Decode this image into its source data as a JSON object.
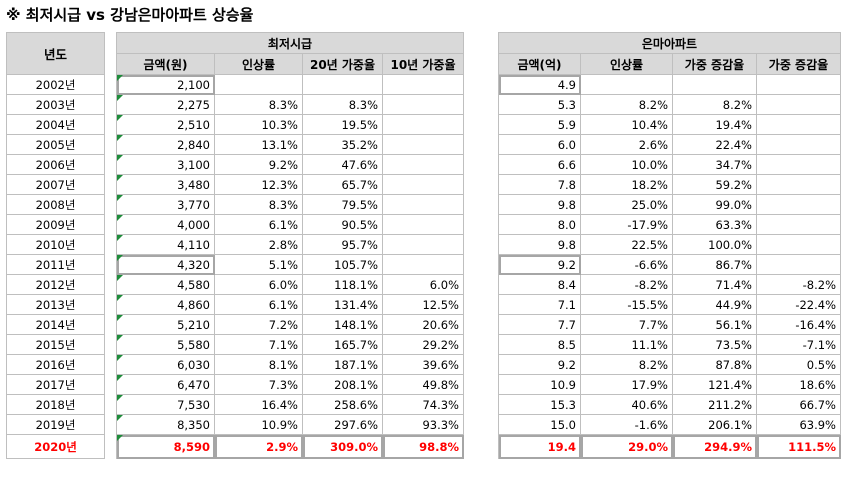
{
  "title": "※ 최저시급 vs 강남은마아파트 상승율",
  "year_header": "년도",
  "left_group": "최저시급",
  "right_group": "은마아파트",
  "left_cols": [
    "금액(원)",
    "인상률",
    "20년 가중율",
    "10년 가중율"
  ],
  "right_cols": [
    "금액(억)",
    "인상률",
    "가중 증감율",
    "가중 증감율"
  ],
  "rows": [
    {
      "year": "2002년",
      "wage": "2,100",
      "wage_rate": "",
      "wage_cum20": "",
      "wage_cum10": "",
      "price": "4.9",
      "price_rate": "",
      "price_cum": "",
      "price_cum10": ""
    },
    {
      "year": "2003년",
      "wage": "2,275",
      "wage_rate": "8.3%",
      "wage_cum20": "8.3%",
      "wage_cum10": "",
      "price": "5.3",
      "price_rate": "8.2%",
      "price_cum": "8.2%",
      "price_cum10": ""
    },
    {
      "year": "2004년",
      "wage": "2,510",
      "wage_rate": "10.3%",
      "wage_cum20": "19.5%",
      "wage_cum10": "",
      "price": "5.9",
      "price_rate": "10.4%",
      "price_cum": "19.4%",
      "price_cum10": ""
    },
    {
      "year": "2005년",
      "wage": "2,840",
      "wage_rate": "13.1%",
      "wage_cum20": "35.2%",
      "wage_cum10": "",
      "price": "6.0",
      "price_rate": "2.6%",
      "price_cum": "22.4%",
      "price_cum10": ""
    },
    {
      "year": "2006년",
      "wage": "3,100",
      "wage_rate": "9.2%",
      "wage_cum20": "47.6%",
      "wage_cum10": "",
      "price": "6.6",
      "price_rate": "10.0%",
      "price_cum": "34.7%",
      "price_cum10": ""
    },
    {
      "year": "2007년",
      "wage": "3,480",
      "wage_rate": "12.3%",
      "wage_cum20": "65.7%",
      "wage_cum10": "",
      "price": "7.8",
      "price_rate": "18.2%",
      "price_cum": "59.2%",
      "price_cum10": ""
    },
    {
      "year": "2008년",
      "wage": "3,770",
      "wage_rate": "8.3%",
      "wage_cum20": "79.5%",
      "wage_cum10": "",
      "price": "9.8",
      "price_rate": "25.0%",
      "price_cum": "99.0%",
      "price_cum10": ""
    },
    {
      "year": "2009년",
      "wage": "4,000",
      "wage_rate": "6.1%",
      "wage_cum20": "90.5%",
      "wage_cum10": "",
      "price": "8.0",
      "price_rate": "-17.9%",
      "price_cum": "63.3%",
      "price_cum10": ""
    },
    {
      "year": "2010년",
      "wage": "4,110",
      "wage_rate": "2.8%",
      "wage_cum20": "95.7%",
      "wage_cum10": "",
      "price": "9.8",
      "price_rate": "22.5%",
      "price_cum": "100.0%",
      "price_cum10": ""
    },
    {
      "year": "2011년",
      "wage": "4,320",
      "wage_rate": "5.1%",
      "wage_cum20": "105.7%",
      "wage_cum10": "",
      "price": "9.2",
      "price_rate": "-6.6%",
      "price_cum": "86.7%",
      "price_cum10": ""
    },
    {
      "year": "2012년",
      "wage": "4,580",
      "wage_rate": "6.0%",
      "wage_cum20": "118.1%",
      "wage_cum10": "6.0%",
      "price": "8.4",
      "price_rate": "-8.2%",
      "price_cum": "71.4%",
      "price_cum10": "-8.2%"
    },
    {
      "year": "2013년",
      "wage": "4,860",
      "wage_rate": "6.1%",
      "wage_cum20": "131.4%",
      "wage_cum10": "12.5%",
      "price": "7.1",
      "price_rate": "-15.5%",
      "price_cum": "44.9%",
      "price_cum10": "-22.4%"
    },
    {
      "year": "2014년",
      "wage": "5,210",
      "wage_rate": "7.2%",
      "wage_cum20": "148.1%",
      "wage_cum10": "20.6%",
      "price": "7.7",
      "price_rate": "7.7%",
      "price_cum": "56.1%",
      "price_cum10": "-16.4%"
    },
    {
      "year": "2015년",
      "wage": "5,580",
      "wage_rate": "7.1%",
      "wage_cum20": "165.7%",
      "wage_cum10": "29.2%",
      "price": "8.5",
      "price_rate": "11.1%",
      "price_cum": "73.5%",
      "price_cum10": "-7.1%"
    },
    {
      "year": "2016년",
      "wage": "6,030",
      "wage_rate": "8.1%",
      "wage_cum20": "187.1%",
      "wage_cum10": "39.6%",
      "price": "9.2",
      "price_rate": "8.2%",
      "price_cum": "87.8%",
      "price_cum10": "0.5%"
    },
    {
      "year": "2017년",
      "wage": "6,470",
      "wage_rate": "7.3%",
      "wage_cum20": "208.1%",
      "wage_cum10": "49.8%",
      "price": "10.9",
      "price_rate": "17.9%",
      "price_cum": "121.4%",
      "price_cum10": "18.6%"
    },
    {
      "year": "2018년",
      "wage": "7,530",
      "wage_rate": "16.4%",
      "wage_cum20": "258.6%",
      "wage_cum10": "74.3%",
      "price": "15.3",
      "price_rate": "40.6%",
      "price_cum": "211.2%",
      "price_cum10": "66.7%"
    },
    {
      "year": "2019년",
      "wage": "8,350",
      "wage_rate": "10.9%",
      "wage_cum20": "297.6%",
      "wage_cum10": "93.3%",
      "price": "15.0",
      "price_rate": "-1.6%",
      "price_cum": "206.1%",
      "price_cum10": "63.9%"
    },
    {
      "year": "2020년",
      "wage": "8,590",
      "wage_rate": "2.9%",
      "wage_cum20": "309.0%",
      "wage_cum10": "98.8%",
      "price": "19.4",
      "price_rate": "29.0%",
      "price_cum": "294.9%",
      "price_cum10": "111.5%"
    }
  ],
  "colors": {
    "header_bg": "#d9d9d9",
    "highlight_text": "#ff0000",
    "grid": "#bfbfbf",
    "flag": "#1e8c3a"
  }
}
